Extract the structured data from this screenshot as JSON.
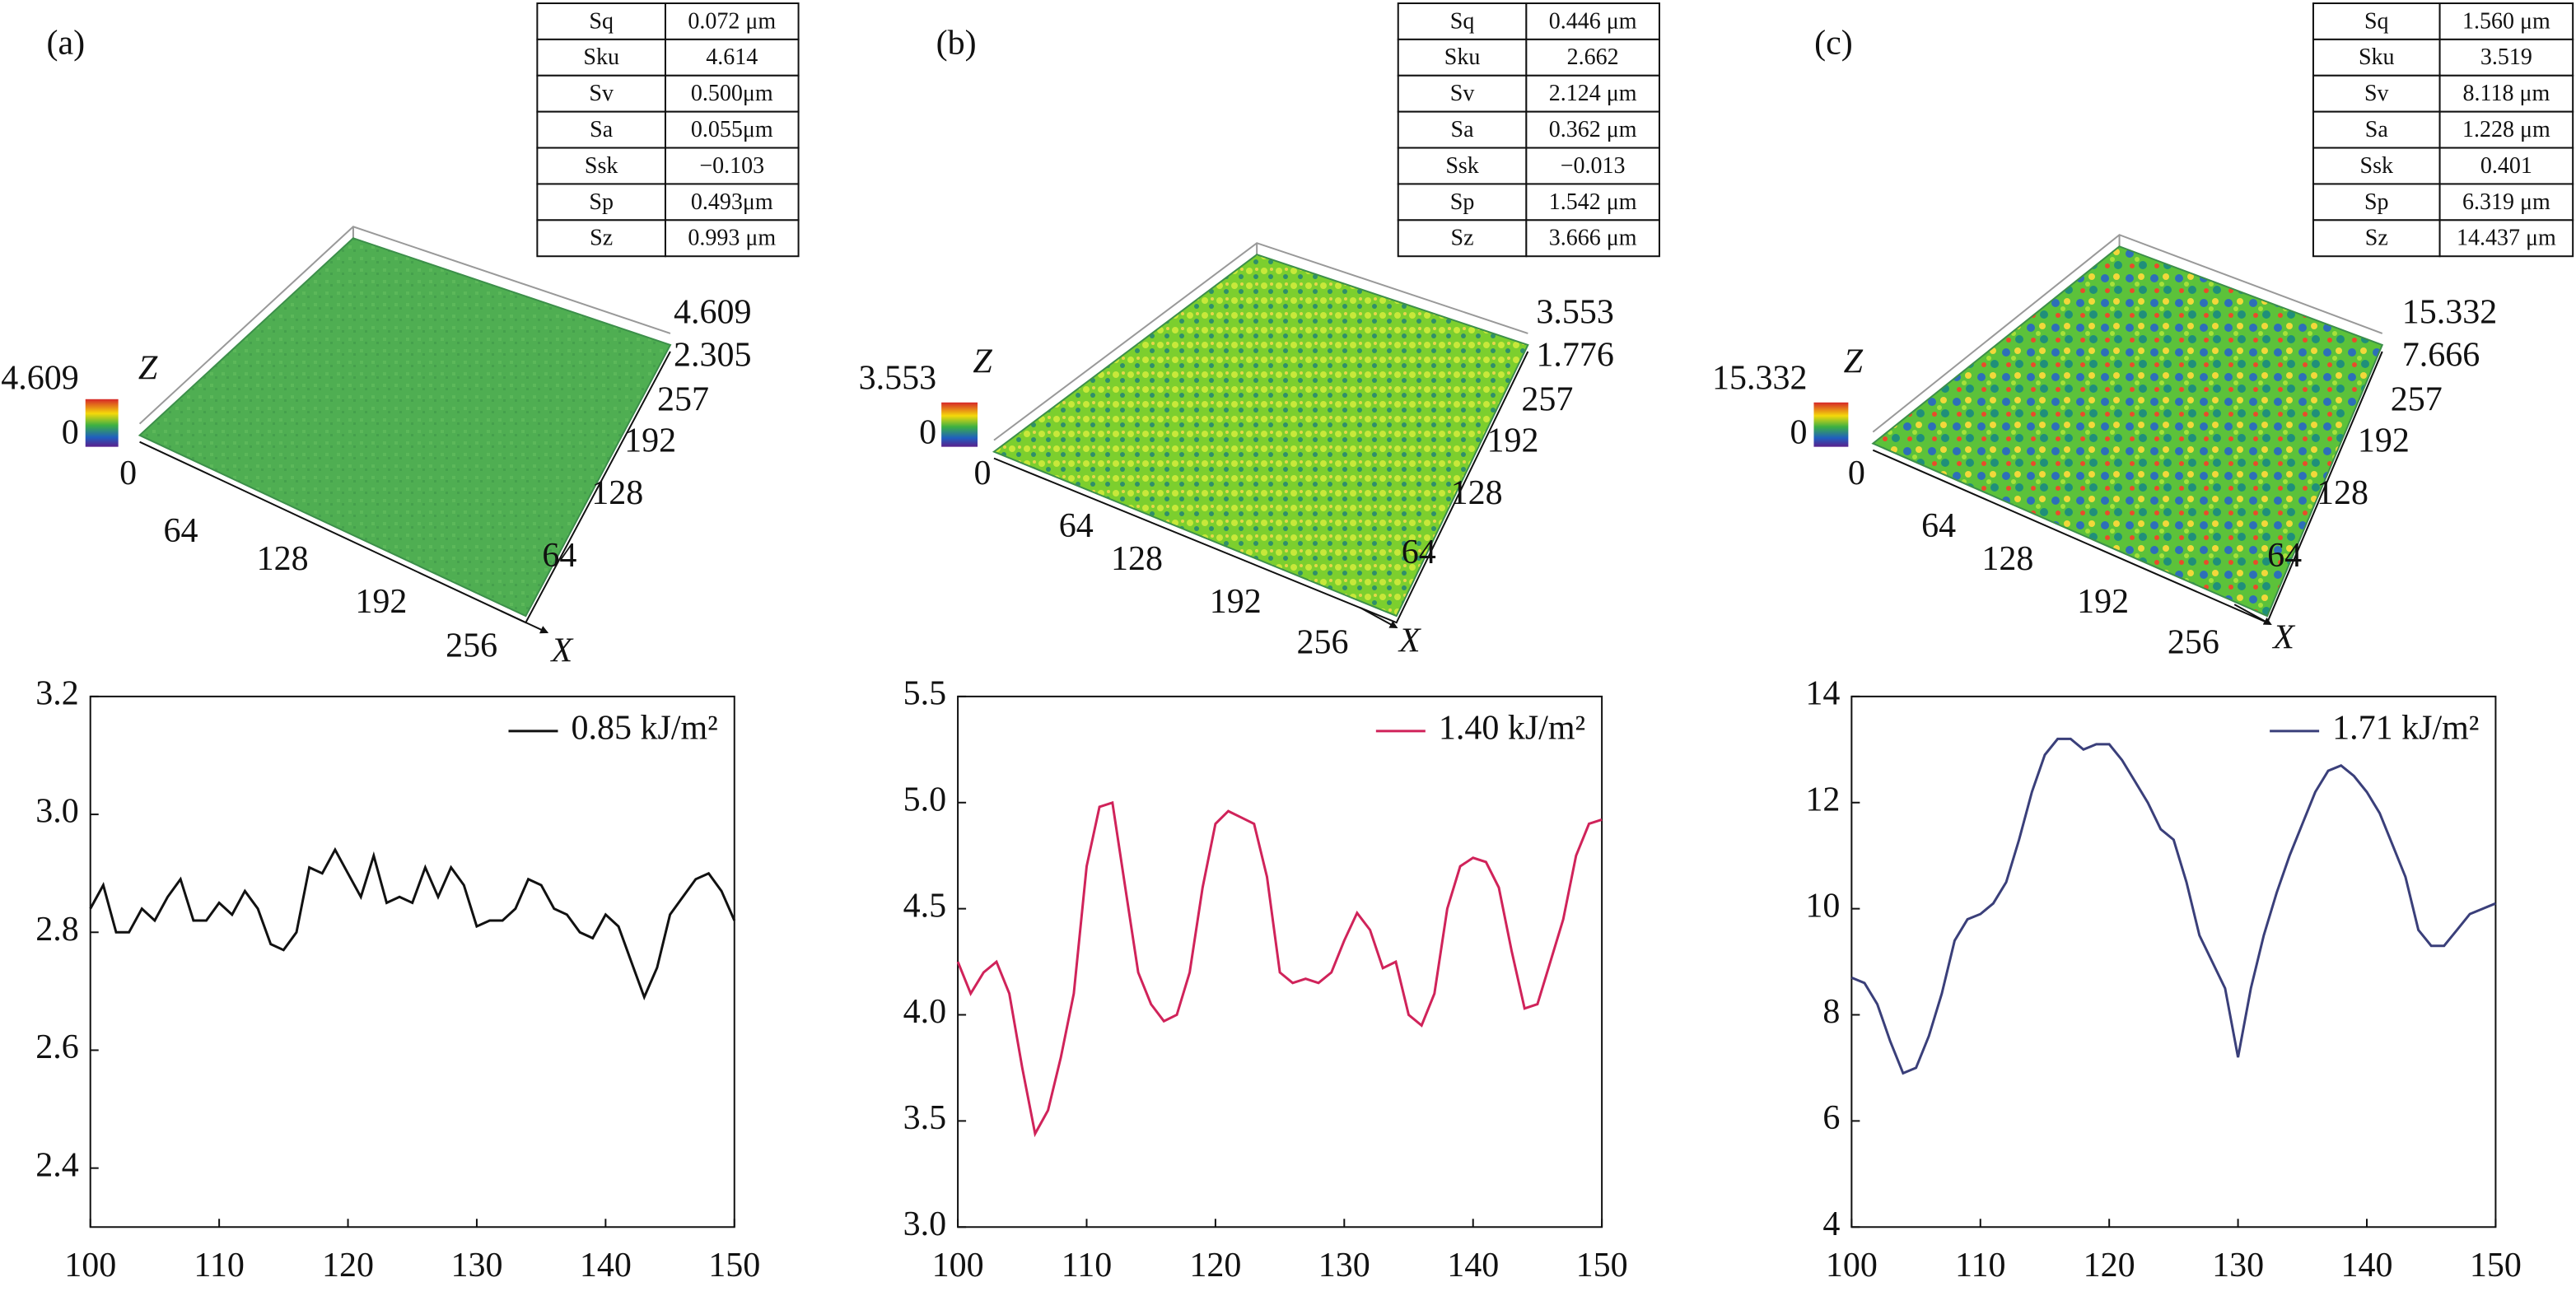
{
  "panels": [
    {
      "label": "(a)",
      "table": {
        "rows": [
          [
            "Sq",
            "0.072 μm"
          ],
          [
            "Sku",
            "4.614"
          ],
          [
            "Sv",
            "0.500μm"
          ],
          [
            "Sa",
            "0.055μm"
          ],
          [
            "Ssk",
            "−0.103"
          ],
          [
            "Sp",
            "0.493μm"
          ],
          [
            "Sz",
            "0.993 μm"
          ]
        ]
      },
      "surface": {
        "z_axis": "Z",
        "x_axis": "X",
        "colorbar": [
          "4.609",
          "0"
        ],
        "z_ticks": [
          "4.609",
          "2.305"
        ],
        "y_ticks": [
          "257",
          "192",
          "128",
          "64"
        ],
        "x_ticks": [
          "0",
          "64",
          "128",
          "192",
          "256"
        ]
      }
    },
    {
      "label": "(b)",
      "table": {
        "rows": [
          [
            "Sq",
            "0.446 μm"
          ],
          [
            "Sku",
            "2.662"
          ],
          [
            "Sv",
            "2.124 μm"
          ],
          [
            "Sa",
            "0.362 μm"
          ],
          [
            "Ssk",
            "−0.013"
          ],
          [
            "Sp",
            "1.542 μm"
          ],
          [
            "Sz",
            "3.666 μm"
          ]
        ]
      },
      "surface": {
        "z_axis": "Z",
        "x_axis": "X",
        "colorbar": [
          "3.553",
          "0"
        ],
        "z_ticks": [
          "3.553",
          "1.776"
        ],
        "y_ticks": [
          "257",
          "192",
          "128",
          "64"
        ],
        "x_ticks": [
          "0",
          "64",
          "128",
          "192",
          "256"
        ]
      }
    },
    {
      "label": "(c)",
      "table": {
        "rows": [
          [
            "Sq",
            "1.560 μm"
          ],
          [
            "Sku",
            "3.519"
          ],
          [
            "Sv",
            "8.118 μm"
          ],
          [
            "Sa",
            "1.228 μm"
          ],
          [
            "Ssk",
            "0.401"
          ],
          [
            "Sp",
            "6.319 μm"
          ],
          [
            "Sz",
            "14.437 μm"
          ]
        ]
      },
      "surface": {
        "z_axis": "Z",
        "x_axis": "X",
        "colorbar": [
          "15.332",
          "0"
        ],
        "z_ticks": [
          "15.332",
          "7.666"
        ],
        "y_ticks": [
          "257",
          "192",
          "128",
          "64"
        ],
        "x_ticks": [
          "0",
          "64",
          "128",
          "192",
          "256"
        ]
      }
    }
  ],
  "chart_data": [
    {
      "type": "line",
      "x": [
        100,
        101,
        102,
        103,
        104,
        105,
        106,
        107,
        108,
        109,
        110,
        111,
        112,
        113,
        114,
        115,
        116,
        117,
        118,
        119,
        120,
        121,
        122,
        123,
        124,
        125,
        126,
        127,
        128,
        129,
        130,
        131,
        132,
        133,
        134,
        135,
        136,
        137,
        138,
        139,
        140,
        141,
        142,
        143,
        144,
        145,
        146,
        147,
        148,
        149,
        150
      ],
      "series": [
        {
          "name": "0.85 kJ/m²",
          "color": "#111111",
          "values": [
            2.84,
            2.88,
            2.8,
            2.8,
            2.84,
            2.82,
            2.86,
            2.89,
            2.82,
            2.82,
            2.85,
            2.83,
            2.87,
            2.84,
            2.78,
            2.77,
            2.8,
            2.91,
            2.9,
            2.94,
            2.9,
            2.86,
            2.93,
            2.85,
            2.86,
            2.85,
            2.91,
            2.86,
            2.91,
            2.88,
            2.81,
            2.82,
            2.82,
            2.84,
            2.89,
            2.88,
            2.84,
            2.83,
            2.8,
            2.79,
            2.83,
            2.81,
            2.75,
            2.69,
            2.74,
            2.83,
            2.86,
            2.89,
            2.9,
            2.87,
            2.82
          ]
        }
      ],
      "xlim": [
        100,
        150
      ],
      "xticks": [
        100,
        110,
        120,
        130,
        140,
        150
      ],
      "ylim": [
        2.3,
        3.2
      ],
      "yticks": [
        2.4,
        2.6,
        2.8,
        {
          "value": 3.0,
          "label": "3.0"
        },
        3.2
      ]
    },
    {
      "type": "line",
      "x": [
        100,
        101,
        102,
        103,
        104,
        105,
        106,
        107,
        108,
        109,
        110,
        111,
        112,
        113,
        114,
        115,
        116,
        117,
        118,
        119,
        120,
        121,
        122,
        123,
        124,
        125,
        126,
        127,
        128,
        129,
        130,
        131,
        132,
        133,
        134,
        135,
        136,
        137,
        138,
        139,
        140,
        141,
        142,
        143,
        144,
        145,
        146,
        147,
        148,
        149,
        150
      ],
      "series": [
        {
          "name": "1.40 kJ/m²",
          "color": "#d0235a",
          "values": [
            4.25,
            4.1,
            4.2,
            4.25,
            4.1,
            3.75,
            3.44,
            3.55,
            3.8,
            4.1,
            4.7,
            4.98,
            5.0,
            4.6,
            4.2,
            4.05,
            3.97,
            4.0,
            4.2,
            4.6,
            4.9,
            4.96,
            4.93,
            4.9,
            4.65,
            4.2,
            4.15,
            4.17,
            4.15,
            4.2,
            4.35,
            4.48,
            4.4,
            4.22,
            4.25,
            4.0,
            3.95,
            4.1,
            4.5,
            4.7,
            4.74,
            4.72,
            4.6,
            4.3,
            4.03,
            4.05,
            4.25,
            4.45,
            4.75,
            4.9,
            4.92
          ]
        }
      ],
      "xlim": [
        100,
        150
      ],
      "xticks": [
        100,
        110,
        120,
        130,
        140,
        150
      ],
      "ylim": [
        3.0,
        5.5
      ],
      "yticks": [
        {
          "value": 3.0,
          "label": "3.0"
        },
        3.5,
        {
          "value": 4.0,
          "label": "4.0"
        },
        4.5,
        {
          "value": 5.0,
          "label": "5.0"
        },
        5.5
      ]
    },
    {
      "type": "line",
      "x": [
        100,
        101,
        102,
        103,
        104,
        105,
        106,
        107,
        108,
        109,
        110,
        111,
        112,
        113,
        114,
        115,
        116,
        117,
        118,
        119,
        120,
        121,
        122,
        123,
        124,
        125,
        126,
        127,
        128,
        129,
        130,
        131,
        132,
        133,
        134,
        135,
        136,
        137,
        138,
        139,
        140,
        141,
        142,
        143,
        144,
        145,
        146,
        147,
        148,
        149,
        150
      ],
      "series": [
        {
          "name": "1.71 kJ/m²",
          "color": "#3a3f7a",
          "values": [
            8.7,
            8.6,
            8.2,
            7.5,
            6.9,
            7.0,
            7.6,
            8.4,
            9.4,
            9.8,
            9.9,
            10.1,
            10.5,
            11.3,
            12.2,
            12.9,
            13.2,
            13.2,
            13.0,
            13.1,
            13.1,
            12.8,
            12.4,
            12.0,
            11.5,
            11.3,
            10.5,
            9.5,
            9.0,
            8.5,
            7.2,
            8.5,
            9.5,
            10.3,
            11.0,
            11.6,
            12.2,
            12.6,
            12.7,
            12.5,
            12.2,
            11.8,
            11.2,
            10.6,
            9.6,
            9.3,
            9.3,
            9.6,
            9.9,
            10.0,
            10.1
          ]
        }
      ],
      "xlim": [
        100,
        150
      ],
      "xticks": [
        100,
        110,
        120,
        130,
        140,
        150
      ],
      "ylim": [
        4,
        14
      ],
      "yticks": [
        4,
        6,
        8,
        10,
        12,
        14
      ]
    }
  ]
}
